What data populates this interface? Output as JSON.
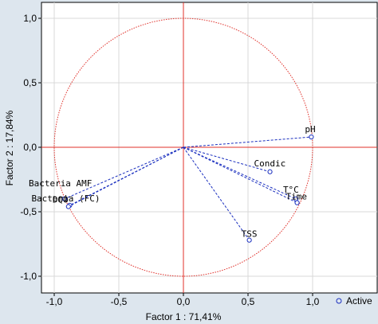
{
  "chart_data": {
    "type": "scatter",
    "title": "",
    "xlabel": "Factor 1 : 71,41%",
    "ylabel": "Factor 2 : 17,84%",
    "xlim": [
      -1.1,
      1.1
    ],
    "ylim": [
      -1.1,
      1.1
    ],
    "x_ticks": [
      "-1,0",
      "-0,5",
      "0,0",
      "0,5",
      "1,0"
    ],
    "x_tick_values": [
      -1.0,
      -0.5,
      0.0,
      0.5,
      1.0
    ],
    "y_ticks": [
      "1,0",
      "0,5",
      "0,0",
      "-0,5",
      "-1,0"
    ],
    "y_tick_values": [
      1.0,
      0.5,
      0.0,
      -0.5,
      -1.0
    ],
    "grid": true,
    "unit_circle": true,
    "series": [
      {
        "name": "Active",
        "points": [
          {
            "label": "pH",
            "x": 0.99,
            "y": 0.08
          },
          {
            "label": "Condic",
            "x": 0.67,
            "y": -0.19
          },
          {
            "label": "T°C",
            "x": 0.87,
            "y": -0.4
          },
          {
            "label": "Time",
            "x": 0.88,
            "y": -0.43
          },
          {
            "label": "TSS",
            "x": 0.51,
            "y": -0.72
          },
          {
            "label": "Bacteria AMF",
            "x": -0.92,
            "y": -0.4
          },
          {
            "label": "Bacteria (FC)",
            "x": -0.88,
            "y": -0.45
          },
          {
            "label": "DQO",
            "x": -0.89,
            "y": -0.46
          }
        ]
      }
    ],
    "legend": {
      "entries": [
        "Active"
      ],
      "placement": "bottom-right"
    },
    "colors": {
      "background": "#dde6ee",
      "plot_bg": "#ffffff",
      "circle": "#e0302a",
      "zero_lines": "#e0302a",
      "vectors": "#1a2fbf",
      "markers": "#1a2fbf",
      "grid": "#d8d8d8"
    }
  }
}
